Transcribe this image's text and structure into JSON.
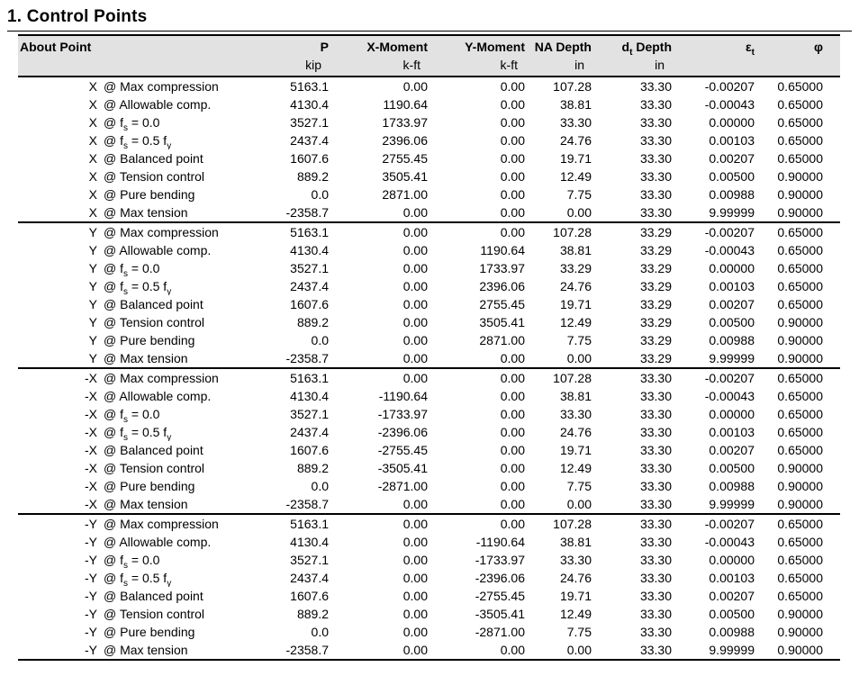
{
  "title": "1. Control Points",
  "colors": {
    "header_bg": "#e2e2e2",
    "border": "#000000",
    "text": "#000000"
  },
  "table": {
    "headers": {
      "about_point": "About Point",
      "p": "P",
      "x_moment": "X-Moment",
      "y_moment": "Y-Moment",
      "na_depth": "NA Depth",
      "dt_depth": "d~t~ Depth",
      "epsilon_t": "ε~t~",
      "phi": "φ"
    },
    "units": {
      "p": "kip",
      "x_moment": "k-ft",
      "y_moment": "k-ft",
      "na_depth": "in",
      "dt_depth": "in"
    },
    "cell_names": [
      "about-cell",
      "point-cell",
      "p-cell",
      "x-moment-cell",
      "y-moment-cell",
      "na-depth-cell",
      "dt-depth-cell",
      "epsilon-t-cell",
      "phi-cell"
    ],
    "groups": [
      {
        "about": "X",
        "rows": [
          [
            "@ Max compression",
            "5163.1",
            "0.00",
            "0.00",
            "107.28",
            "33.30",
            "-0.00207",
            "0.65000"
          ],
          [
            "@ Allowable comp.",
            "4130.4",
            "1190.64",
            "0.00",
            "38.81",
            "33.30",
            "-0.00043",
            "0.65000"
          ],
          [
            "@ f~s~ = 0.0",
            "3527.1",
            "1733.97",
            "0.00",
            "33.30",
            "33.30",
            "0.00000",
            "0.65000"
          ],
          [
            "@ f~s~ = 0.5 f~y~",
            "2437.4",
            "2396.06",
            "0.00",
            "24.76",
            "33.30",
            "0.00103",
            "0.65000"
          ],
          [
            "@ Balanced point",
            "1607.6",
            "2755.45",
            "0.00",
            "19.71",
            "33.30",
            "0.00207",
            "0.65000"
          ],
          [
            "@ Tension control",
            "889.2",
            "3505.41",
            "0.00",
            "12.49",
            "33.30",
            "0.00500",
            "0.90000"
          ],
          [
            "@ Pure bending",
            "0.0",
            "2871.00",
            "0.00",
            "7.75",
            "33.30",
            "0.00988",
            "0.90000"
          ],
          [
            "@ Max tension",
            "-2358.7",
            "0.00",
            "0.00",
            "0.00",
            "33.30",
            "9.99999",
            "0.90000"
          ]
        ]
      },
      {
        "about": "Y",
        "rows": [
          [
            "@ Max compression",
            "5163.1",
            "0.00",
            "0.00",
            "107.28",
            "33.29",
            "-0.00207",
            "0.65000"
          ],
          [
            "@ Allowable comp.",
            "4130.4",
            "0.00",
            "1190.64",
            "38.81",
            "33.29",
            "-0.00043",
            "0.65000"
          ],
          [
            "@ f~s~ = 0.0",
            "3527.1",
            "0.00",
            "1733.97",
            "33.29",
            "33.29",
            "0.00000",
            "0.65000"
          ],
          [
            "@ f~s~ = 0.5 f~y~",
            "2437.4",
            "0.00",
            "2396.06",
            "24.76",
            "33.29",
            "0.00103",
            "0.65000"
          ],
          [
            "@ Balanced point",
            "1607.6",
            "0.00",
            "2755.45",
            "19.71",
            "33.29",
            "0.00207",
            "0.65000"
          ],
          [
            "@ Tension control",
            "889.2",
            "0.00",
            "3505.41",
            "12.49",
            "33.29",
            "0.00500",
            "0.90000"
          ],
          [
            "@ Pure bending",
            "0.0",
            "0.00",
            "2871.00",
            "7.75",
            "33.29",
            "0.00988",
            "0.90000"
          ],
          [
            "@ Max tension",
            "-2358.7",
            "0.00",
            "0.00",
            "0.00",
            "33.29",
            "9.99999",
            "0.90000"
          ]
        ]
      },
      {
        "about": "-X",
        "rows": [
          [
            "@ Max compression",
            "5163.1",
            "0.00",
            "0.00",
            "107.28",
            "33.30",
            "-0.00207",
            "0.65000"
          ],
          [
            "@ Allowable comp.",
            "4130.4",
            "-1190.64",
            "0.00",
            "38.81",
            "33.30",
            "-0.00043",
            "0.65000"
          ],
          [
            "@ f~s~ = 0.0",
            "3527.1",
            "-1733.97",
            "0.00",
            "33.30",
            "33.30",
            "0.00000",
            "0.65000"
          ],
          [
            "@ f~s~ = 0.5 f~y~",
            "2437.4",
            "-2396.06",
            "0.00",
            "24.76",
            "33.30",
            "0.00103",
            "0.65000"
          ],
          [
            "@ Balanced point",
            "1607.6",
            "-2755.45",
            "0.00",
            "19.71",
            "33.30",
            "0.00207",
            "0.65000"
          ],
          [
            "@ Tension control",
            "889.2",
            "-3505.41",
            "0.00",
            "12.49",
            "33.30",
            "0.00500",
            "0.90000"
          ],
          [
            "@ Pure bending",
            "0.0",
            "-2871.00",
            "0.00",
            "7.75",
            "33.30",
            "0.00988",
            "0.90000"
          ],
          [
            "@ Max tension",
            "-2358.7",
            "0.00",
            "0.00",
            "0.00",
            "33.30",
            "9.99999",
            "0.90000"
          ]
        ]
      },
      {
        "about": "-Y",
        "rows": [
          [
            "@ Max compression",
            "5163.1",
            "0.00",
            "0.00",
            "107.28",
            "33.30",
            "-0.00207",
            "0.65000"
          ],
          [
            "@ Allowable comp.",
            "4130.4",
            "0.00",
            "-1190.64",
            "38.81",
            "33.30",
            "-0.00043",
            "0.65000"
          ],
          [
            "@ f~s~ = 0.0",
            "3527.1",
            "0.00",
            "-1733.97",
            "33.30",
            "33.30",
            "0.00000",
            "0.65000"
          ],
          [
            "@ f~s~ = 0.5 f~y~",
            "2437.4",
            "0.00",
            "-2396.06",
            "24.76",
            "33.30",
            "0.00103",
            "0.65000"
          ],
          [
            "@ Balanced point",
            "1607.6",
            "0.00",
            "-2755.45",
            "19.71",
            "33.30",
            "0.00207",
            "0.65000"
          ],
          [
            "@ Tension control",
            "889.2",
            "0.00",
            "-3505.41",
            "12.49",
            "33.30",
            "0.00500",
            "0.90000"
          ],
          [
            "@ Pure bending",
            "0.0",
            "0.00",
            "-2871.00",
            "7.75",
            "33.30",
            "0.00988",
            "0.90000"
          ],
          [
            "@ Max tension",
            "-2358.7",
            "0.00",
            "0.00",
            "0.00",
            "33.30",
            "9.99999",
            "0.90000"
          ]
        ]
      }
    ]
  }
}
